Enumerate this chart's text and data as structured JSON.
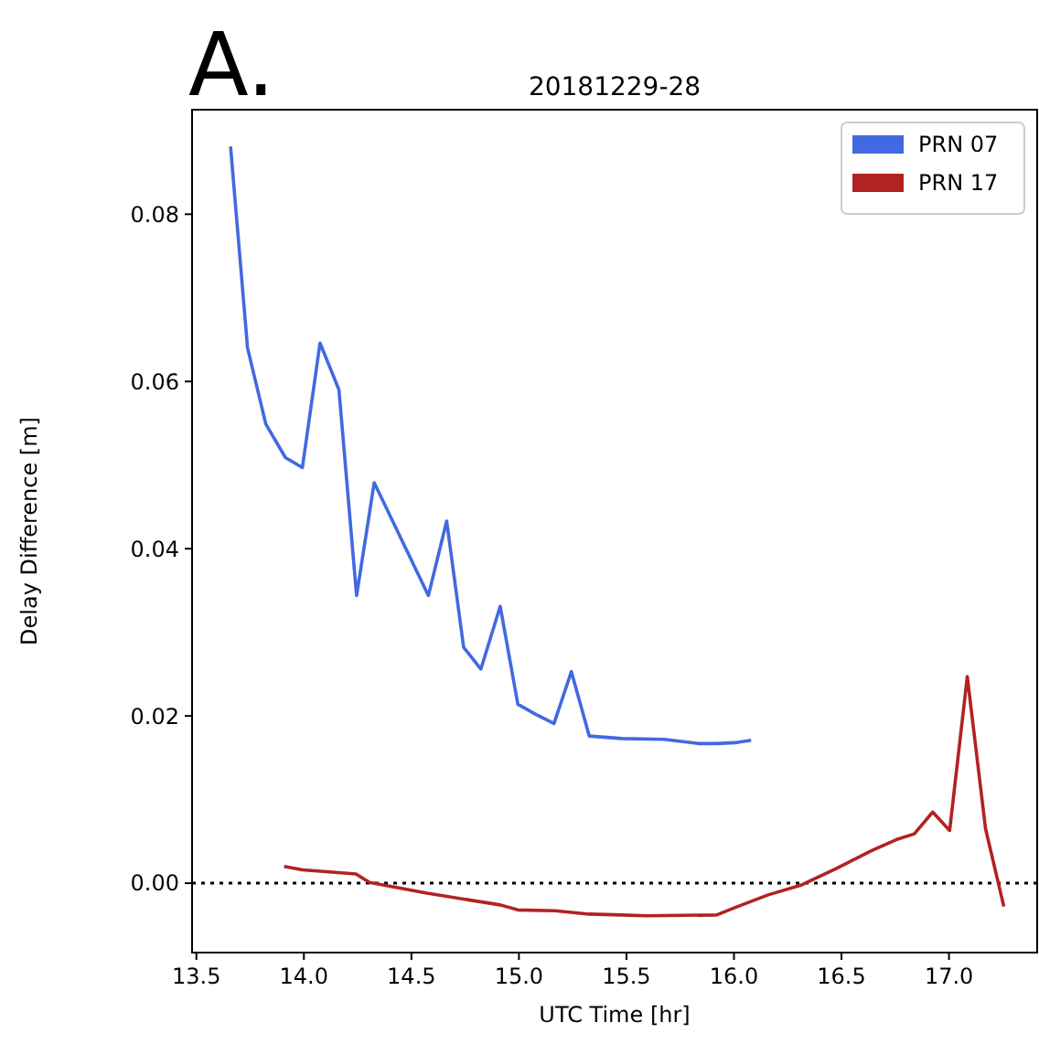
{
  "chart_data": {
    "type": "line",
    "title": "20181229-28",
    "xlabel": "UTC Time [hr]",
    "ylabel": "Delay Difference [m]",
    "annotations": [
      "A."
    ],
    "xlim": [
      13.48,
      17.41
    ],
    "xticks": [
      {
        "value": 13.5,
        "label": "13.5"
      },
      {
        "value": 14,
        "label": "14.0"
      },
      {
        "value": 14.5,
        "label": "14.5"
      },
      {
        "value": 15,
        "label": "15.0"
      },
      {
        "value": 15.5,
        "label": "15.5"
      },
      {
        "value": 16,
        "label": "16.0"
      },
      {
        "value": 16.5,
        "label": "16.5"
      },
      {
        "value": 17,
        "label": "17.0"
      }
    ],
    "ylim": [
      -0.0083,
      0.0925
    ],
    "yticks": [
      {
        "value": 0,
        "label": "0.00"
      },
      {
        "value": 0.02,
        "label": "0.02"
      },
      {
        "value": 0.04,
        "label": "0.04"
      },
      {
        "value": 0.06,
        "label": "0.06"
      },
      {
        "value": 0.08,
        "label": "0.08"
      }
    ],
    "legend": "top right",
    "grid": false,
    "ref_lines": [
      {
        "axis": "y",
        "value": 0,
        "color": "#000000",
        "line_style": "dotted"
      }
    ],
    "series": [
      {
        "name": "PRN 07",
        "color": "#4169e1",
        "x": [
          13.659,
          13.738,
          13.823,
          13.914,
          13.993,
          14.075,
          14.163,
          14.245,
          14.327,
          14.579,
          14.664,
          14.743,
          14.823,
          14.913,
          14.995,
          15.078,
          15.163,
          15.244,
          15.327,
          15.48,
          15.675,
          15.834,
          15.919,
          16.004,
          16.08
        ],
        "values": [
          0.0881,
          0.064,
          0.0549,
          0.0509,
          0.0497,
          0.0646,
          0.059,
          0.0344,
          0.0479,
          0.0344,
          0.0433,
          0.0282,
          0.0256,
          0.0331,
          0.0214,
          0.0202,
          0.0191,
          0.0253,
          0.0176,
          0.0173,
          0.0172,
          0.0167,
          0.0167,
          0.0168,
          0.0171
        ]
      },
      {
        "name": "PRN 17",
        "color": "#b22222",
        "x": [
          13.908,
          13.993,
          14.242,
          14.305,
          14.573,
          14.913,
          14.995,
          15.168,
          15.327,
          15.48,
          15.593,
          15.919,
          16.017,
          16.159,
          16.315,
          16.471,
          16.641,
          16.754,
          16.839,
          16.924,
          17.003,
          17.085,
          17.17,
          17.255
        ],
        "values": [
          0.002,
          0.0016,
          0.0011,
          0.0001,
          -0.0012,
          -0.0026,
          -0.0032,
          -0.0033,
          -0.0037,
          -0.0038,
          -0.0039,
          -0.0038,
          -0.0028,
          -0.0014,
          -0.0002,
          0.0017,
          0.0039,
          0.0052,
          0.0059,
          0.0085,
          0.0063,
          0.0247,
          0.0065,
          -0.0028
        ]
      }
    ]
  }
}
